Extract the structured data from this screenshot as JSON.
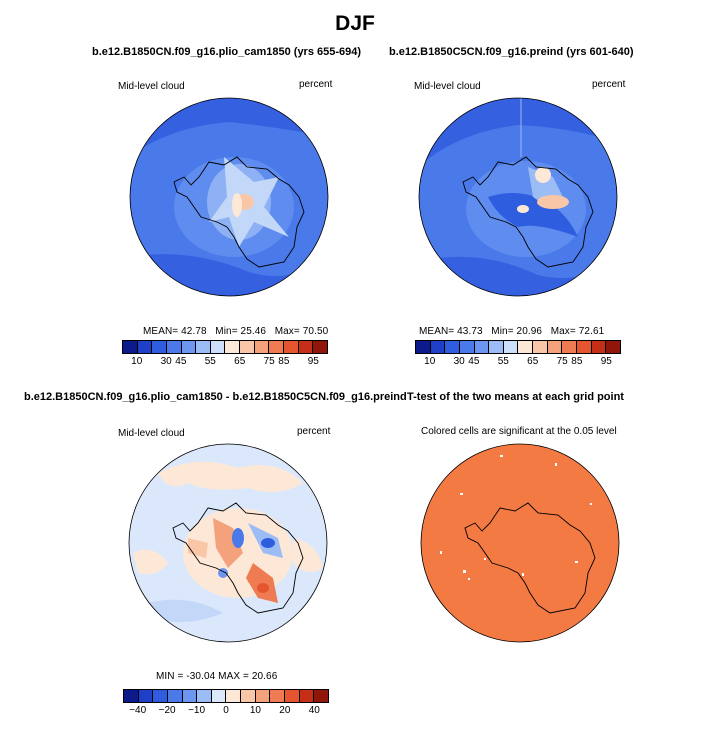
{
  "title": "DJF",
  "panels": [
    {
      "case_title": "b.e12.B1850CN.f09_g16.plio_cam1850 (yrs 655-694)",
      "var_label": "Mid-level cloud",
      "units": "percent",
      "stats": {
        "mean_label": "MEAN=",
        "mean": "42.78",
        "min_label": "Min=",
        "min": "25.46",
        "max_label": "Max=",
        "max": "70.50"
      }
    },
    {
      "case_title": "b.e12.B1850C5CN.f09_g16.preind (yrs 601-640)",
      "var_label": "Mid-level cloud",
      "units": "percent",
      "stats": {
        "mean_label": "MEAN=",
        "mean": "43.73",
        "min_label": "Min=",
        "min": "20.96",
        "max_label": "Max=",
        "max": "72.61"
      }
    },
    {
      "case_title": "b.e12.B1850CN.f09_g16.plio_cam1850 - b.e12.B1850C5CN.f09_g16.preind",
      "var_label": "Mid-level cloud",
      "units": "percent",
      "stats_line": "MIN = -30.04  MAX =  20.66"
    },
    {
      "case_title": "T-test of the two means at each grid point",
      "subtitle": "Colored cells are significant at the 0.05 level"
    }
  ],
  "colorbars": {
    "abs": {
      "colors": [
        "#0c1a8c",
        "#1e3fc8",
        "#2f5de0",
        "#4a79ea",
        "#6c96f0",
        "#9cbcf5",
        "#cddffa",
        "#fde8d8",
        "#f9c7a8",
        "#f4a27c",
        "#ee7b52",
        "#e45530",
        "#c52e17",
        "#8f1608"
      ],
      "ticks": [
        "10",
        "30",
        "45",
        "55",
        "65",
        "75",
        "85",
        "95"
      ]
    },
    "diff": {
      "colors": [
        "#0c1a8c",
        "#1e3fc8",
        "#2f5de0",
        "#4a79ea",
        "#6c96f0",
        "#9cbcf5",
        "#dbe8fb",
        "#fde8d8",
        "#f9c7a8",
        "#f4a27c",
        "#ee7b52",
        "#e45530",
        "#c52e17",
        "#8f1608"
      ],
      "ticks": [
        "−40",
        "−20",
        "−10",
        "0",
        "10",
        "20",
        "40"
      ]
    }
  },
  "map_colors": {
    "base1": "#3f6fe6",
    "base2": "#3a68e0",
    "diff_base": "#dbe8fb",
    "ttest": "#f47a44",
    "coast": "#000000"
  }
}
